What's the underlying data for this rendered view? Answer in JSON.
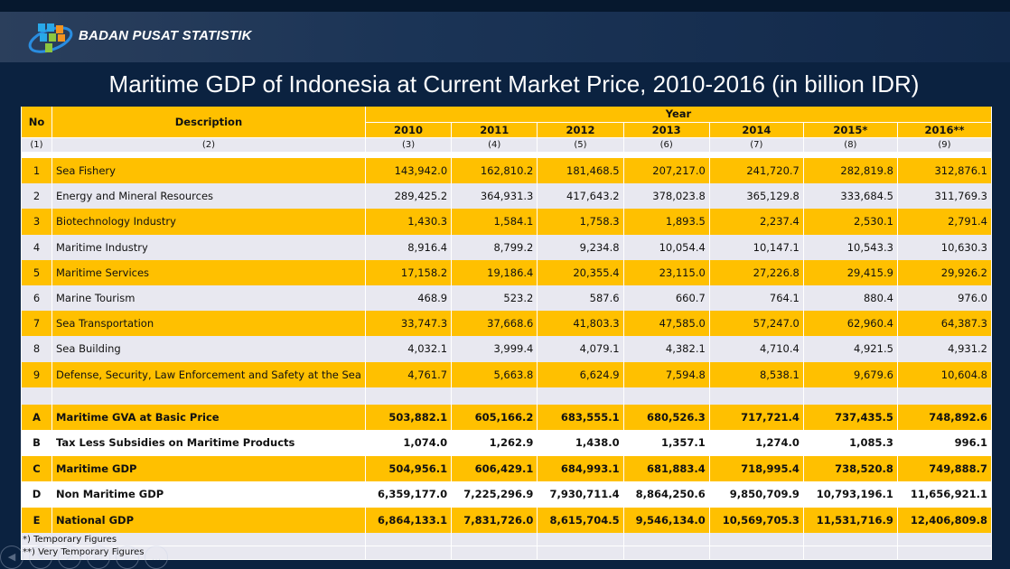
{
  "header": {
    "org": "BADAN PUSAT STATISTIK"
  },
  "title": "Maritime GDP of Indonesia at Current Market Price, 2010-2016 (in billion IDR)",
  "table": {
    "col_no": "No",
    "col_desc": "Description",
    "col_year": "Year",
    "years": [
      "2010",
      "2011",
      "2012",
      "2013",
      "2014",
      "2015*",
      "2016**"
    ],
    "col_numbers": [
      "(1)",
      "(2)",
      "(3)",
      "(4)",
      "(5)",
      "(6)",
      "(7)",
      "(8)",
      "(9)"
    ],
    "rows": [
      {
        "no": "1",
        "desc": "Sea Fishery",
        "v": [
          "143,942.0",
          "162,810.2",
          "181,468.5",
          "207,217.0",
          "241,720.7",
          "282,819.8",
          "312,876.1"
        ]
      },
      {
        "no": "2",
        "desc": "Energy and Mineral Resources",
        "v": [
          "289,425.2",
          "364,931.3",
          "417,643.2",
          "378,023.8",
          "365,129.8",
          "333,684.5",
          "311,769.3"
        ]
      },
      {
        "no": "3",
        "desc": "Biotechnology Industry",
        "v": [
          "1,430.3",
          "1,584.1",
          "1,758.3",
          "1,893.5",
          "2,237.4",
          "2,530.1",
          "2,791.4"
        ]
      },
      {
        "no": "4",
        "desc": "Maritime Industry",
        "v": [
          "8,916.4",
          "8,799.2",
          "9,234.8",
          "10,054.4",
          "10,147.1",
          "10,543.3",
          "10,630.3"
        ]
      },
      {
        "no": "5",
        "desc": "Maritime Services",
        "v": [
          "17,158.2",
          "19,186.4",
          "20,355.4",
          "23,115.0",
          "27,226.8",
          "29,415.9",
          "29,926.2"
        ]
      },
      {
        "no": "6",
        "desc": "Marine Tourism",
        "v": [
          "468.9",
          "523.2",
          "587.6",
          "660.7",
          "764.1",
          "880.4",
          "976.0"
        ]
      },
      {
        "no": "7",
        "desc": "Sea Transportation",
        "v": [
          "33,747.3",
          "37,668.6",
          "41,803.3",
          "47,585.0",
          "57,247.0",
          "62,960.4",
          "64,387.3"
        ]
      },
      {
        "no": "8",
        "desc": "Sea Building",
        "v": [
          "4,032.1",
          "3,999.4",
          "4,079.1",
          "4,382.1",
          "4,710.4",
          "4,921.5",
          "4,931.2"
        ]
      },
      {
        "no": "9",
        "desc": "Defense, Security, Law Enforcement and Safety at the Sea",
        "v": [
          "4,761.7",
          "5,663.8",
          "6,624.9",
          "7,594.8",
          "8,538.1",
          "9,679.6",
          "10,604.8"
        ]
      }
    ],
    "aggregates": [
      {
        "no": "A",
        "desc": "Maritime GVA at Basic Price",
        "v": [
          "503,882.1",
          "605,166.2",
          "683,555.1",
          "680,526.3",
          "717,721.4",
          "737,435.5",
          "748,892.6"
        ]
      },
      {
        "no": "B",
        "desc": "Tax  Less Subsidies on Maritime Products",
        "v": [
          "1,074.0",
          "1,262.9",
          "1,438.0",
          "1,357.1",
          "1,274.0",
          "1,085.3",
          "996.1"
        ]
      },
      {
        "no": "C",
        "desc": "Maritime GDP",
        "v": [
          "504,956.1",
          "606,429.1",
          "684,993.1",
          "681,883.4",
          "718,995.4",
          "738,520.8",
          "749,888.7"
        ]
      },
      {
        "no": "D",
        "desc": "Non Maritime GDP",
        "v": [
          "6,359,177.0",
          "7,225,296.9",
          "7,930,711.4",
          "8,864,250.6",
          "9,850,709.9",
          "10,793,196.1",
          "11,656,921.1"
        ]
      },
      {
        "no": "E",
        "desc": "National GDP",
        "v": [
          "6,864,133.1",
          "7,831,726.0",
          "8,615,704.5",
          "9,546,134.0",
          "10,569,705.3",
          "11,531,716.9",
          "12,406,809.8"
        ]
      }
    ],
    "footnotes": [
      "*) Temporary Figures",
      "**) Very Temporary Figures"
    ]
  },
  "colors": {
    "yellow": "#ffc000",
    "gray": "#e8e8f0",
    "background": "#0b2240"
  }
}
